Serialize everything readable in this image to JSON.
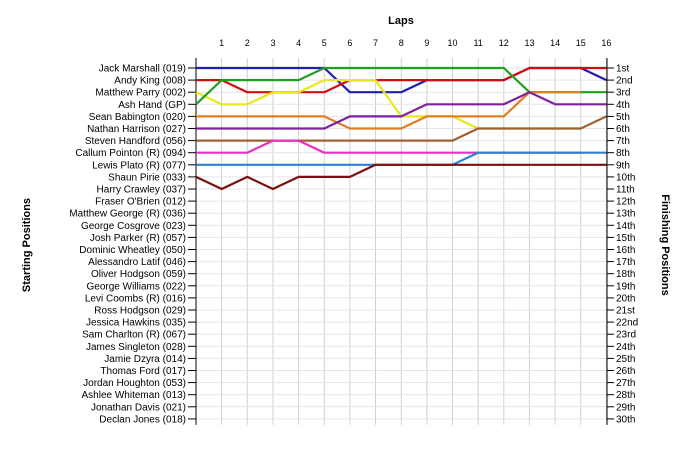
{
  "chart_data": {
    "type": "line",
    "title": "Laps",
    "ylabel_left": "Starting Positions",
    "ylabel_right": "Finishing Positions",
    "laps": [
      1,
      2,
      3,
      4,
      5,
      6,
      7,
      8,
      9,
      10,
      11,
      12,
      13,
      14,
      15,
      16
    ],
    "drivers": [
      "Jack Marshall (019)",
      "Andy King (008)",
      "Matthew Parry (002)",
      "Ash Hand (GP)",
      "Sean Babington (020)",
      "Nathan Harrison (027)",
      "Steven Handford (056)",
      "Callum Pointon (R) (094)",
      "Lewis Plato (R) (077)",
      "Shaun Pirie (033)",
      "Harry Crawley (037)",
      "Fraser O'Brien (012)",
      "Matthew George (R) (036)",
      "George Cosgrove (023)",
      "Josh Parker (R) (057)",
      "Dominic Wheatley (050)",
      "Alessandro Latif (046)",
      "Oliver Hodgson (059)",
      "George Williams (022)",
      "Levi Coombs (R) (016)",
      "Ross Hodgson (029)",
      "Jessica Hawkins (035)",
      "Sam Charlton (R) (067)",
      "James Singleton (028)",
      "Jamie Dzyra (014)",
      "Thomas Ford (017)",
      "Jordan Houghton (053)",
      "Ashlee Whiteman (013)",
      "Jonathan Davis (021)",
      "Declan Jones (018)"
    ],
    "finishing_positions": [
      "1st",
      "2nd",
      "3rd",
      "4th",
      "5th",
      "6th",
      "7th",
      "8th",
      "9th",
      "10th",
      "11th",
      "12th",
      "13th",
      "14th",
      "15th",
      "16th",
      "17th",
      "18th",
      "19th",
      "20th",
      "21st",
      "22nd",
      "23rd",
      "24th",
      "25th",
      "26th",
      "27th",
      "28th",
      "29th",
      "30th"
    ],
    "series": [
      {
        "color": "#1f1fb0",
        "positions": [
          1,
          1,
          1,
          1,
          1,
          3,
          3,
          3,
          2,
          2,
          2,
          2,
          1,
          1,
          1,
          2
        ],
        "end_lap": 16
      },
      {
        "color": "#d01010",
        "positions": [
          2,
          3,
          3,
          3,
          3,
          2,
          2,
          2,
          2,
          2,
          2,
          2,
          1,
          1,
          1,
          1
        ],
        "end_lap": 16
      },
      {
        "color": "#e8e81a",
        "positions": [
          4,
          4,
          3,
          3,
          2,
          2,
          2,
          5,
          5,
          5,
          6,
          6,
          6,
          6,
          6,
          6
        ],
        "end_lap": 15
      },
      {
        "color": "#1fa01f",
        "positions": [
          2,
          2,
          2,
          2,
          1,
          1,
          1,
          1,
          1,
          1,
          1,
          1,
          3,
          3,
          3,
          3
        ],
        "end_lap": 16
      },
      {
        "color": "#e08020",
        "positions": [
          5,
          5,
          5,
          5,
          5,
          6,
          6,
          6,
          5,
          5,
          5,
          5,
          3,
          3,
          3,
          3
        ],
        "end_lap": 15
      },
      {
        "color": "#8020a0",
        "positions": [
          6,
          6,
          6,
          6,
          6,
          5,
          5,
          5,
          4,
          4,
          4,
          4,
          3,
          4,
          4,
          4
        ],
        "end_lap": 16
      },
      {
        "color": "#a06030",
        "positions": [
          7,
          7,
          7,
          7,
          7,
          7,
          7,
          7,
          7,
          7,
          6,
          6,
          6,
          6,
          6,
          5
        ],
        "end_lap": 16
      },
      {
        "color": "#e830c0",
        "positions": [
          8,
          8,
          7,
          7,
          8,
          8,
          8,
          8,
          8,
          8,
          8,
          8,
          8,
          8,
          8,
          8
        ],
        "end_lap": 15
      },
      {
        "color": "#3080d0",
        "positions": [
          9,
          9,
          9,
          9,
          9,
          9,
          9,
          9,
          9,
          9,
          8,
          8,
          8,
          8,
          8,
          8
        ],
        "end_lap": 16
      },
      {
        "color": "#7a1010",
        "positions": [
          11,
          10,
          11,
          10,
          10,
          10,
          9,
          9,
          9,
          9,
          9,
          9,
          9,
          9,
          9,
          9
        ],
        "end_lap": 16
      }
    ],
    "ylim": [
      0,
      30
    ]
  }
}
